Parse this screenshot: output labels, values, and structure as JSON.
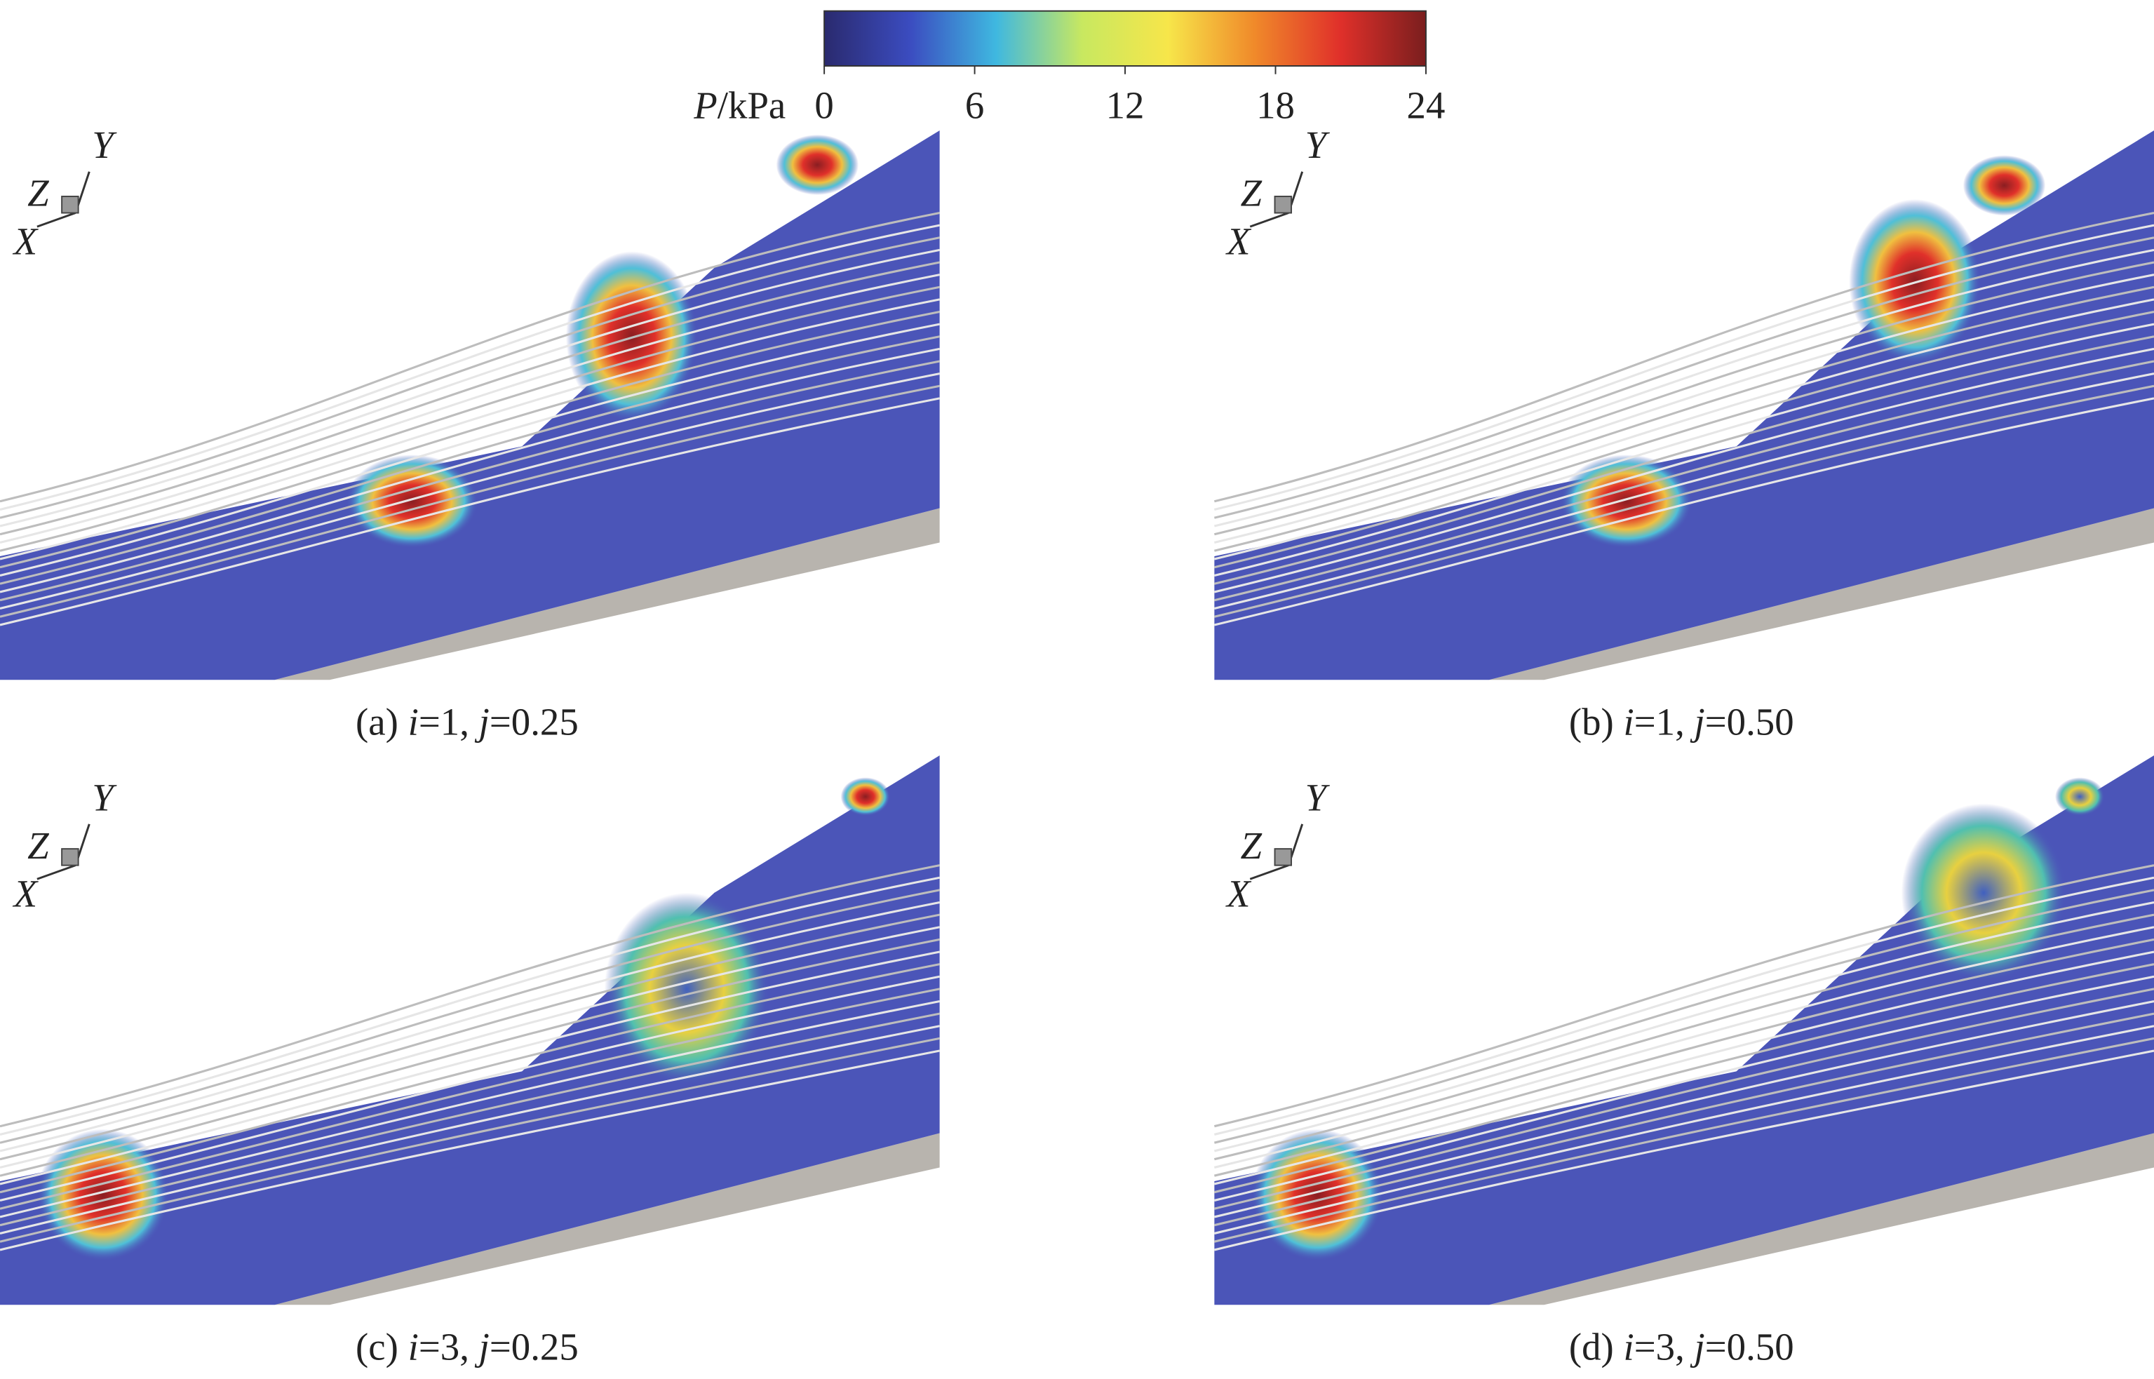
{
  "colorbar": {
    "label": [
      {
        "text": "P",
        "italic": true
      },
      {
        "text": "/kPa",
        "italic": false
      }
    ],
    "lim": [
      0,
      24
    ],
    "ticks": [
      0,
      6,
      12,
      18,
      24
    ],
    "colors": [
      "#2a2a6e",
      "#3b4cc0",
      "#3fb8e0",
      "#c8e860",
      "#f7e64a",
      "#f08a2a",
      "#e0302a",
      "#7a1e1e"
    ]
  },
  "panels": [
    {
      "axes": {
        "x": "X",
        "y": "Y",
        "z": "Z"
      },
      "caption": [
        {
          "text": "(a) ",
          "italic": false
        },
        {
          "text": "i",
          "italic": true
        },
        {
          "text": "=1, ",
          "italic": false
        },
        {
          "text": "j",
          "italic": true
        },
        {
          "text": "=0.25",
          "italic": false
        }
      ]
    },
    {
      "axes": {
        "x": "X",
        "y": "Y",
        "z": "Z"
      },
      "caption": [
        {
          "text": "(b) ",
          "italic": false
        },
        {
          "text": "i",
          "italic": true
        },
        {
          "text": "=1, ",
          "italic": false
        },
        {
          "text": "j",
          "italic": true
        },
        {
          "text": "=0.50",
          "italic": false
        }
      ]
    },
    {
      "axes": {
        "x": "X",
        "y": "Y",
        "z": "Z"
      },
      "caption": [
        {
          "text": "(c) ",
          "italic": false
        },
        {
          "text": "i",
          "italic": true
        },
        {
          "text": "=3, ",
          "italic": false
        },
        {
          "text": "j",
          "italic": true
        },
        {
          "text": "=0.25",
          "italic": false
        }
      ]
    },
    {
      "axes": {
        "x": "X",
        "y": "Y",
        "z": "Z"
      },
      "caption": [
        {
          "text": "(d) ",
          "italic": false
        },
        {
          "text": "i",
          "italic": true
        },
        {
          "text": "=3, ",
          "italic": false
        },
        {
          "text": "j",
          "italic": true
        },
        {
          "text": "=0.50",
          "italic": false
        }
      ]
    }
  ]
}
